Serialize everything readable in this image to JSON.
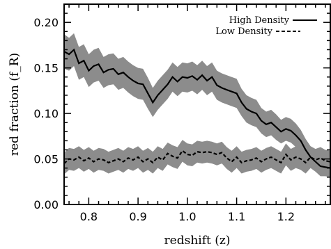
{
  "chart_data": {
    "type": "line",
    "xlabel": "redshift (z)",
    "ylabel": "red fraction (f_R)",
    "xlim": [
      0.75,
      1.29
    ],
    "ylim": [
      0.0,
      0.22
    ],
    "x_ticks": [
      "0.8",
      "0.9",
      "1.0",
      "1.1",
      "1.2"
    ],
    "y_ticks": [
      "0.00",
      "0.05",
      "0.10",
      "0.15",
      "0.20"
    ],
    "legend_position": "top-right",
    "series": [
      {
        "name": "High Density",
        "style": "solid",
        "x": [
          0.75,
          0.76,
          0.77,
          0.78,
          0.79,
          0.8,
          0.81,
          0.82,
          0.83,
          0.84,
          0.85,
          0.86,
          0.87,
          0.88,
          0.89,
          0.9,
          0.91,
          0.92,
          0.93,
          0.94,
          0.95,
          0.96,
          0.97,
          0.98,
          0.99,
          1.0,
          1.01,
          1.02,
          1.03,
          1.04,
          1.05,
          1.06,
          1.07,
          1.08,
          1.09,
          1.1,
          1.11,
          1.12,
          1.13,
          1.14,
          1.15,
          1.16,
          1.17,
          1.18,
          1.19,
          1.2,
          1.21,
          1.22,
          1.23,
          1.24,
          1.25,
          1.26,
          1.27,
          1.28,
          1.29
        ],
        "values": [
          0.168,
          0.165,
          0.17,
          0.155,
          0.158,
          0.147,
          0.152,
          0.154,
          0.145,
          0.148,
          0.149,
          0.143,
          0.145,
          0.14,
          0.136,
          0.133,
          0.132,
          0.122,
          0.112,
          0.12,
          0.126,
          0.132,
          0.14,
          0.135,
          0.14,
          0.139,
          0.141,
          0.137,
          0.142,
          0.136,
          0.14,
          0.131,
          0.128,
          0.126,
          0.124,
          0.122,
          0.112,
          0.105,
          0.102,
          0.1,
          0.092,
          0.088,
          0.09,
          0.085,
          0.08,
          0.083,
          0.081,
          0.076,
          0.07,
          0.06,
          0.052,
          0.047,
          0.042,
          0.041,
          0.04
        ],
        "upper": [
          0.187,
          0.183,
          0.188,
          0.173,
          0.176,
          0.165,
          0.17,
          0.172,
          0.162,
          0.165,
          0.166,
          0.16,
          0.162,
          0.157,
          0.153,
          0.15,
          0.149,
          0.139,
          0.128,
          0.136,
          0.142,
          0.148,
          0.156,
          0.151,
          0.156,
          0.155,
          0.157,
          0.153,
          0.158,
          0.152,
          0.156,
          0.147,
          0.144,
          0.142,
          0.14,
          0.138,
          0.127,
          0.12,
          0.117,
          0.115,
          0.106,
          0.102,
          0.104,
          0.099,
          0.093,
          0.096,
          0.094,
          0.089,
          0.082,
          0.072,
          0.064,
          0.058,
          0.053,
          0.051,
          0.05
        ],
        "lower": [
          0.149,
          0.147,
          0.152,
          0.137,
          0.14,
          0.129,
          0.134,
          0.136,
          0.128,
          0.131,
          0.132,
          0.126,
          0.128,
          0.123,
          0.119,
          0.116,
          0.115,
          0.105,
          0.096,
          0.104,
          0.11,
          0.116,
          0.124,
          0.119,
          0.124,
          0.123,
          0.125,
          0.121,
          0.126,
          0.12,
          0.124,
          0.115,
          0.112,
          0.11,
          0.108,
          0.106,
          0.097,
          0.09,
          0.087,
          0.085,
          0.078,
          0.074,
          0.076,
          0.071,
          0.067,
          0.07,
          0.068,
          0.063,
          0.058,
          0.048,
          0.04,
          0.036,
          0.031,
          0.031,
          0.03
        ]
      },
      {
        "name": "Low Density",
        "style": "dashed",
        "x": [
          0.75,
          0.76,
          0.77,
          0.78,
          0.79,
          0.8,
          0.81,
          0.82,
          0.83,
          0.84,
          0.85,
          0.86,
          0.87,
          0.88,
          0.89,
          0.9,
          0.91,
          0.92,
          0.93,
          0.94,
          0.95,
          0.96,
          0.97,
          0.98,
          0.99,
          1.0,
          1.01,
          1.02,
          1.03,
          1.04,
          1.05,
          1.06,
          1.07,
          1.08,
          1.09,
          1.1,
          1.11,
          1.12,
          1.13,
          1.14,
          1.15,
          1.16,
          1.17,
          1.18,
          1.19,
          1.2,
          1.21,
          1.22,
          1.23,
          1.24,
          1.25,
          1.26,
          1.27,
          1.28,
          1.29
        ],
        "values": [
          0.045,
          0.05,
          0.049,
          0.052,
          0.048,
          0.051,
          0.047,
          0.05,
          0.049,
          0.046,
          0.048,
          0.05,
          0.047,
          0.051,
          0.049,
          0.052,
          0.047,
          0.05,
          0.046,
          0.052,
          0.049,
          0.056,
          0.053,
          0.051,
          0.059,
          0.055,
          0.054,
          0.058,
          0.057,
          0.058,
          0.057,
          0.055,
          0.057,
          0.051,
          0.047,
          0.052,
          0.046,
          0.048,
          0.049,
          0.051,
          0.047,
          0.05,
          0.052,
          0.049,
          0.046,
          0.055,
          0.049,
          0.052,
          0.05,
          0.046,
          0.052,
          0.049,
          0.051,
          0.048,
          0.047
        ],
        "upper": [
          0.057,
          0.062,
          0.061,
          0.064,
          0.06,
          0.063,
          0.059,
          0.062,
          0.061,
          0.058,
          0.06,
          0.062,
          0.059,
          0.063,
          0.061,
          0.064,
          0.059,
          0.062,
          0.058,
          0.064,
          0.061,
          0.068,
          0.065,
          0.063,
          0.071,
          0.067,
          0.066,
          0.07,
          0.069,
          0.07,
          0.069,
          0.067,
          0.069,
          0.063,
          0.059,
          0.064,
          0.058,
          0.06,
          0.061,
          0.063,
          0.059,
          0.062,
          0.064,
          0.061,
          0.058,
          0.067,
          0.061,
          0.064,
          0.062,
          0.058,
          0.064,
          0.061,
          0.063,
          0.06,
          0.059
        ],
        "lower": [
          0.033,
          0.038,
          0.037,
          0.04,
          0.036,
          0.039,
          0.035,
          0.038,
          0.037,
          0.034,
          0.036,
          0.038,
          0.035,
          0.039,
          0.037,
          0.04,
          0.035,
          0.038,
          0.034,
          0.04,
          0.037,
          0.044,
          0.041,
          0.039,
          0.047,
          0.043,
          0.042,
          0.046,
          0.045,
          0.046,
          0.045,
          0.043,
          0.045,
          0.039,
          0.035,
          0.04,
          0.034,
          0.036,
          0.037,
          0.039,
          0.035,
          0.038,
          0.04,
          0.037,
          0.034,
          0.043,
          0.037,
          0.04,
          0.038,
          0.034,
          0.04,
          0.037,
          0.039,
          0.036,
          0.035
        ]
      }
    ],
    "colors": {
      "band": "#8c8c8c",
      "line": "#000000",
      "background": "#ffffff"
    }
  }
}
